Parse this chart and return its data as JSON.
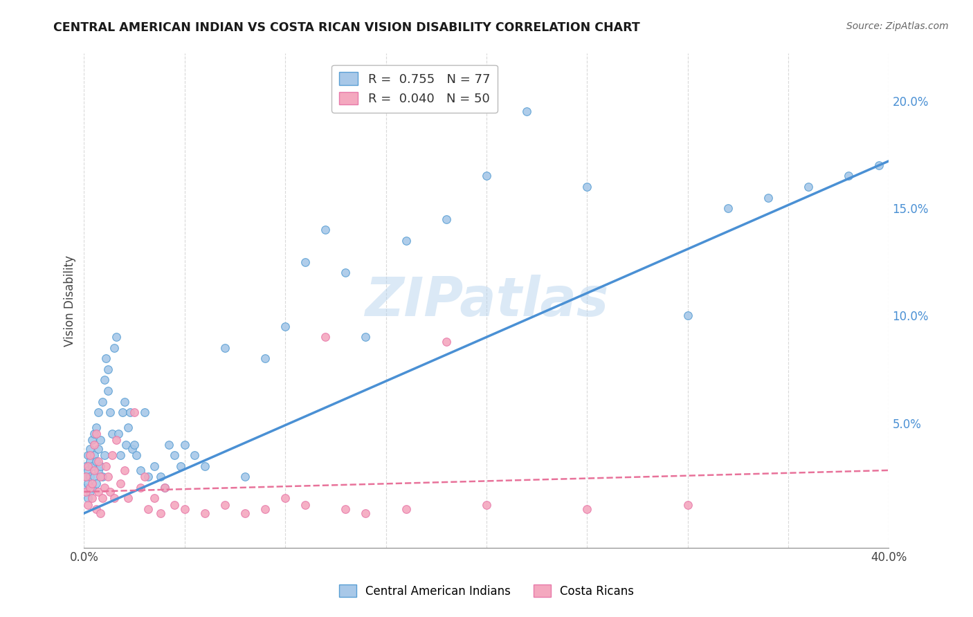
{
  "title": "CENTRAL AMERICAN INDIAN VS COSTA RICAN VISION DISABILITY CORRELATION CHART",
  "source": "Source: ZipAtlas.com",
  "ylabel": "Vision Disability",
  "xlim": [
    0,
    0.4
  ],
  "ylim": [
    -0.008,
    0.222
  ],
  "xticks": [
    0.0,
    0.05,
    0.1,
    0.15,
    0.2,
    0.25,
    0.3,
    0.35,
    0.4
  ],
  "xtick_labels": [
    "0.0%",
    "",
    "",
    "",
    "",
    "",
    "",
    "",
    "40.0%"
  ],
  "ytick_labels_right": [
    "5.0%",
    "10.0%",
    "15.0%",
    "20.0%"
  ],
  "yticks_right": [
    0.05,
    0.1,
    0.15,
    0.2
  ],
  "blue_label": "Central American Indians",
  "pink_label": "Costa Ricans",
  "blue_R": "0.755",
  "blue_N": "77",
  "pink_R": "0.040",
  "pink_N": "50",
  "blue_color": "#a8c8e8",
  "pink_color": "#f4a8bf",
  "blue_edge_color": "#5a9fd4",
  "pink_edge_color": "#e87aaa",
  "blue_line_color": "#4a90d4",
  "pink_line_color": "#e8729a",
  "watermark": "ZIPatlas",
  "blue_trend_x": [
    0.0,
    0.4
  ],
  "blue_trend_y": [
    0.008,
    0.172
  ],
  "pink_trend_x": [
    0.0,
    0.4
  ],
  "pink_trend_y": [
    0.018,
    0.028
  ],
  "background_color": "#ffffff",
  "grid_color": "#d0d0d0",
  "blue_scatter_x": [
    0.001,
    0.001,
    0.001,
    0.002,
    0.002,
    0.002,
    0.002,
    0.003,
    0.003,
    0.003,
    0.003,
    0.004,
    0.004,
    0.004,
    0.005,
    0.005,
    0.005,
    0.006,
    0.006,
    0.006,
    0.007,
    0.007,
    0.007,
    0.008,
    0.008,
    0.009,
    0.009,
    0.01,
    0.01,
    0.011,
    0.012,
    0.012,
    0.013,
    0.014,
    0.015,
    0.016,
    0.017,
    0.018,
    0.019,
    0.02,
    0.021,
    0.022,
    0.023,
    0.024,
    0.025,
    0.026,
    0.028,
    0.03,
    0.032,
    0.035,
    0.038,
    0.04,
    0.042,
    0.045,
    0.048,
    0.05,
    0.055,
    0.06,
    0.07,
    0.08,
    0.09,
    0.1,
    0.11,
    0.12,
    0.13,
    0.14,
    0.16,
    0.18,
    0.2,
    0.22,
    0.25,
    0.3,
    0.32,
    0.34,
    0.36,
    0.38,
    0.395
  ],
  "blue_scatter_y": [
    0.02,
    0.025,
    0.03,
    0.015,
    0.022,
    0.028,
    0.035,
    0.018,
    0.025,
    0.032,
    0.038,
    0.02,
    0.03,
    0.042,
    0.025,
    0.035,
    0.045,
    0.022,
    0.032,
    0.048,
    0.028,
    0.038,
    0.055,
    0.03,
    0.042,
    0.025,
    0.06,
    0.035,
    0.07,
    0.08,
    0.065,
    0.075,
    0.055,
    0.045,
    0.085,
    0.09,
    0.045,
    0.035,
    0.055,
    0.06,
    0.04,
    0.048,
    0.055,
    0.038,
    0.04,
    0.035,
    0.028,
    0.055,
    0.025,
    0.03,
    0.025,
    0.02,
    0.04,
    0.035,
    0.03,
    0.04,
    0.035,
    0.03,
    0.085,
    0.025,
    0.08,
    0.095,
    0.125,
    0.14,
    0.12,
    0.09,
    0.135,
    0.145,
    0.165,
    0.195,
    0.16,
    0.1,
    0.15,
    0.155,
    0.16,
    0.165,
    0.17
  ],
  "pink_scatter_x": [
    0.001,
    0.001,
    0.002,
    0.002,
    0.003,
    0.003,
    0.004,
    0.004,
    0.005,
    0.005,
    0.006,
    0.006,
    0.007,
    0.007,
    0.008,
    0.008,
    0.009,
    0.01,
    0.011,
    0.012,
    0.013,
    0.014,
    0.015,
    0.016,
    0.018,
    0.02,
    0.022,
    0.025,
    0.028,
    0.03,
    0.032,
    0.035,
    0.038,
    0.04,
    0.045,
    0.05,
    0.06,
    0.07,
    0.08,
    0.09,
    0.1,
    0.11,
    0.12,
    0.13,
    0.14,
    0.16,
    0.18,
    0.2,
    0.25,
    0.3
  ],
  "pink_scatter_y": [
    0.018,
    0.025,
    0.012,
    0.03,
    0.02,
    0.035,
    0.015,
    0.022,
    0.028,
    0.04,
    0.01,
    0.045,
    0.018,
    0.032,
    0.008,
    0.025,
    0.015,
    0.02,
    0.03,
    0.025,
    0.018,
    0.035,
    0.015,
    0.042,
    0.022,
    0.028,
    0.015,
    0.055,
    0.02,
    0.025,
    0.01,
    0.015,
    0.008,
    0.02,
    0.012,
    0.01,
    0.008,
    0.012,
    0.008,
    0.01,
    0.015,
    0.012,
    0.09,
    0.01,
    0.008,
    0.01,
    0.088,
    0.012,
    0.01,
    0.012
  ]
}
